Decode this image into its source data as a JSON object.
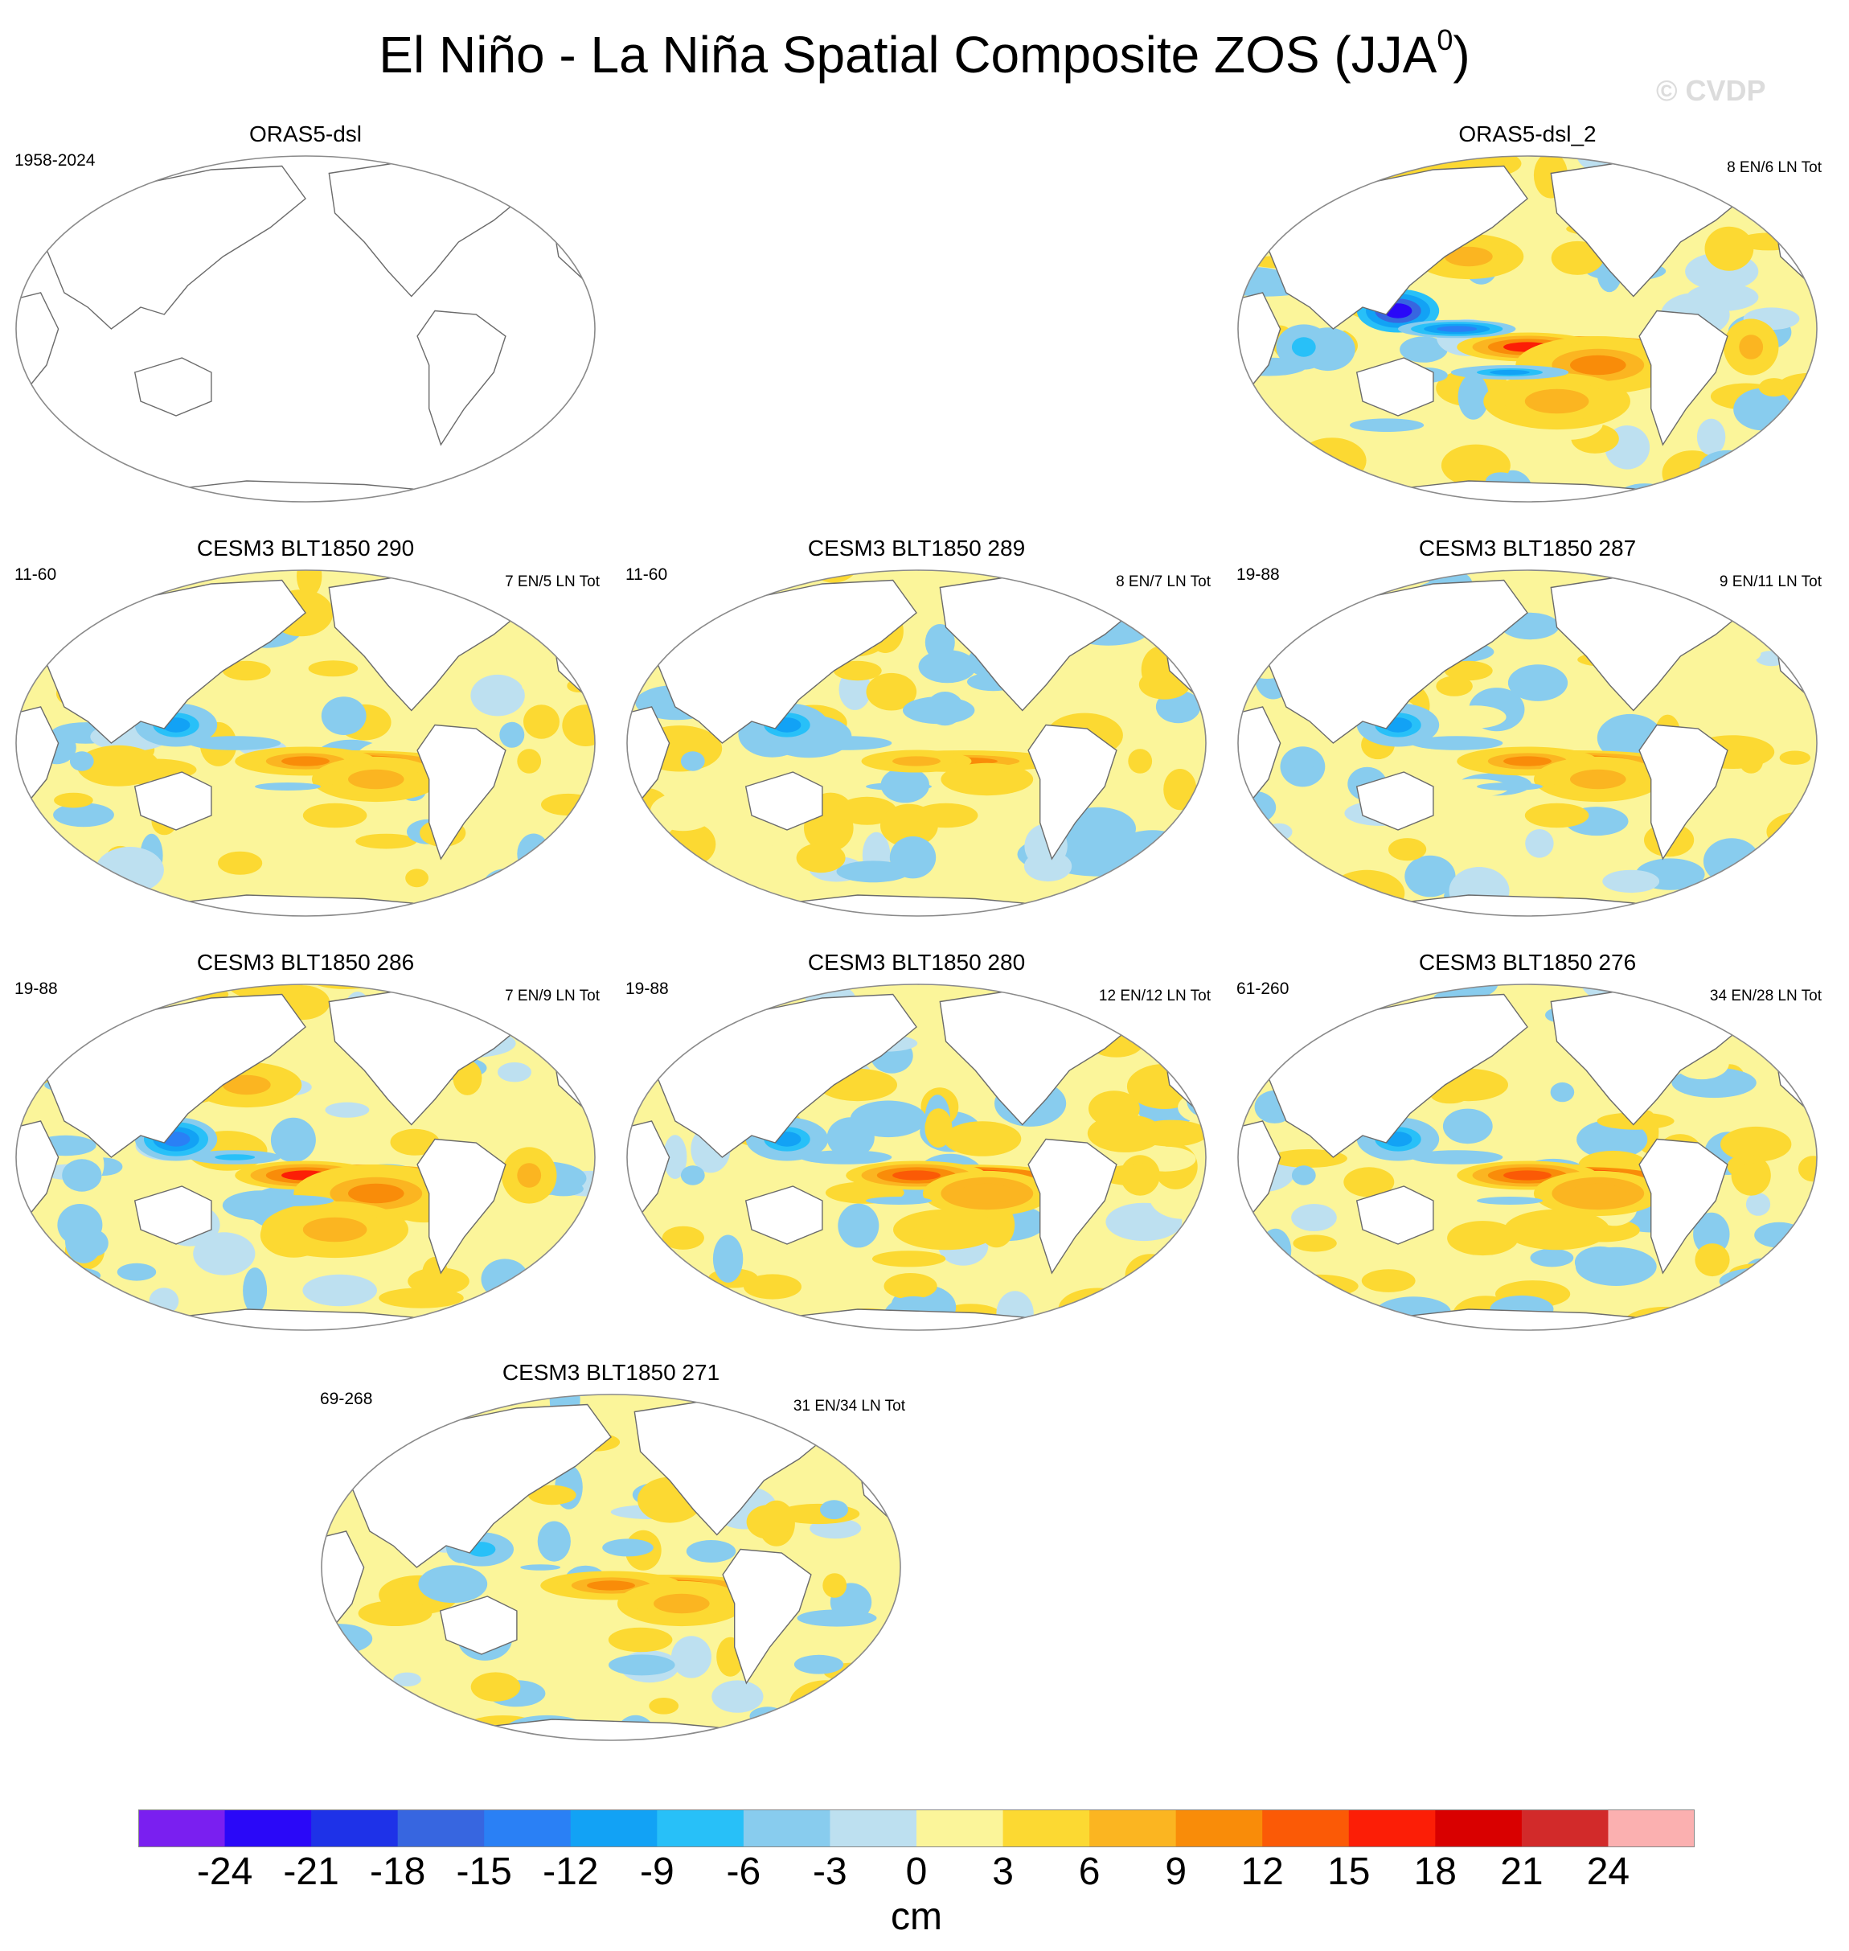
{
  "title": "El Niño - La Niña Spatial Composite ZOS (JJA",
  "title_superscript": "0",
  "title_suffix": ")",
  "watermark": "© CVDP",
  "panels": [
    {
      "id": "p0",
      "title": "ORAS5-dsl",
      "left_label": "1958-2024",
      "right_label": "",
      "has_data": false
    },
    {
      "id": "p1",
      "title": "ORAS5-dsl_2",
      "left_label": "",
      "right_label": "8 EN/6 LN Tot",
      "has_data": true
    },
    {
      "id": "p2",
      "title": "CESM3 BLT1850 290",
      "left_label": "11-60",
      "right_label": "7 EN/5 LN Tot",
      "has_data": true
    },
    {
      "id": "p3",
      "title": "CESM3 BLT1850 289",
      "left_label": "11-60",
      "right_label": "8 EN/7 LN Tot",
      "has_data": true
    },
    {
      "id": "p4",
      "title": "CESM3 BLT1850 287",
      "left_label": "19-88",
      "right_label": "9 EN/11 LN Tot",
      "has_data": true
    },
    {
      "id": "p5",
      "title": "CESM3 BLT1850 286",
      "left_label": "19-88",
      "right_label": "7 EN/9 LN Tot",
      "has_data": true
    },
    {
      "id": "p6",
      "title": "CESM3 BLT1850 280",
      "left_label": "19-88",
      "right_label": "12 EN/12 LN Tot",
      "has_data": true
    },
    {
      "id": "p7",
      "title": "CESM3 BLT1850 276",
      "left_label": "61-260",
      "right_label": "34 EN/28 LN Tot",
      "has_data": true
    },
    {
      "id": "p8",
      "title": "CESM3 BLT1850 271",
      "left_label": "69-268",
      "right_label": "31 EN/34 LN Tot",
      "has_data": true
    }
  ],
  "chart_data": {
    "type": "heatmap",
    "projection": "Robinson, Pacific-centered",
    "variable": "ZOS composite (El Niño minus La Niña), JJA year 0",
    "colorbar": {
      "unit": "cm",
      "levels": [
        -24,
        -21,
        -18,
        -15,
        -12,
        -9,
        -6,
        -3,
        0,
        3,
        6,
        9,
        12,
        15,
        18,
        21,
        24
      ],
      "tick_labels": [
        "-24",
        "-21",
        "-18",
        "-15",
        "-12",
        "-9",
        "-6",
        "-3",
        "0",
        "3",
        "6",
        "9",
        "12",
        "15",
        "18",
        "21",
        "24"
      ],
      "colors": [
        "#7a1ff0",
        "#2a08f8",
        "#1e32e8",
        "#3766e0",
        "#2a80f5",
        "#12a2f5",
        "#28c0f8",
        "#88ccee",
        "#bde0f0",
        "#fbf59a",
        "#fcd932",
        "#fbb521",
        "#f98c09",
        "#fb5a06",
        "#fc1e06",
        "#d90000",
        "#d22a2a",
        "#fbb0b0"
      ]
    },
    "panels": [
      {
        "title": "ORAS5-dsl",
        "period": "1958-2024",
        "events": "",
        "equatorial_east_pacific_max_cm": null
      },
      {
        "title": "ORAS5-dsl_2",
        "period": "",
        "events": "8 EN/6 LN Tot",
        "equatorial_east_pacific_max_cm": 20,
        "west_pacific_min_cm": -21
      },
      {
        "title": "CESM3 BLT1850 290",
        "period": "11-60",
        "events": "7 EN/5 LN Tot",
        "equatorial_east_pacific_max_cm": 12,
        "west_pacific_min_cm": -9
      },
      {
        "title": "CESM3 BLT1850 289",
        "period": "11-60",
        "events": "8 EN/7 LN Tot",
        "equatorial_east_pacific_max_cm": 10,
        "west_pacific_min_cm": -9
      },
      {
        "title": "CESM3 BLT1850 287",
        "period": "19-88",
        "events": "9 EN/11 LN Tot",
        "equatorial_east_pacific_max_cm": 12,
        "west_pacific_min_cm": -9
      },
      {
        "title": "CESM3 BLT1850 286",
        "period": "19-88",
        "events": "7 EN/9 LN Tot",
        "equatorial_east_pacific_max_cm": 20,
        "west_pacific_min_cm": -12
      },
      {
        "title": "CESM3 BLT1850 280",
        "period": "19-88",
        "events": "12 EN/12 LN Tot",
        "equatorial_east_pacific_max_cm": 16,
        "west_pacific_min_cm": -9
      },
      {
        "title": "CESM3 BLT1850 276",
        "period": "61-260",
        "events": "34 EN/28 LN Tot",
        "equatorial_east_pacific_max_cm": 16,
        "west_pacific_min_cm": -9
      },
      {
        "title": "CESM3 BLT1850 271",
        "period": "69-268",
        "events": "31 EN/34 LN Tot",
        "equatorial_east_pacific_max_cm": 12,
        "west_pacific_min_cm": -6
      }
    ]
  }
}
